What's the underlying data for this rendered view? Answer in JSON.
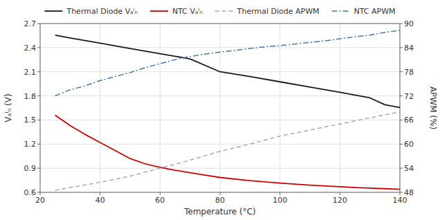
{
  "chart_data": {
    "type": "line",
    "xlabel": "Temperature (°C)",
    "ylabel": "Vₐᴵₙ (V)",
    "y2label": "APWM (%)",
    "xlim": [
      20,
      140
    ],
    "ylim": [
      0.6,
      2.7
    ],
    "y2lim": [
      48,
      90
    ],
    "xticks": [
      20,
      40,
      60,
      80,
      100,
      120,
      140
    ],
    "yticks": [
      0.6,
      0.9,
      1.2,
      1.5,
      1.8,
      2.1,
      2.4,
      2.7
    ],
    "y2ticks": [
      48,
      54,
      60,
      66,
      72,
      78,
      84,
      90
    ],
    "grid": true,
    "legend": "top",
    "series": [
      {
        "name": "Thermal Diode Vₐᴵₙ",
        "color": "#1a1a1a",
        "line_style": "solid",
        "axis": "y",
        "x": [
          25,
          30,
          40,
          50,
          60,
          70,
          80,
          90,
          100,
          110,
          120,
          125,
          130,
          135,
          140
        ],
        "values": [
          2.555,
          2.52,
          2.455,
          2.39,
          2.325,
          2.26,
          2.1,
          2.04,
          1.975,
          1.91,
          1.845,
          1.81,
          1.775,
          1.69,
          1.655
        ]
      },
      {
        "name": "NTC Vₐᴵₙ",
        "color": "#cc0000",
        "line_style": "solid",
        "axis": "y",
        "x": [
          25,
          30,
          35,
          40,
          45,
          50,
          55,
          60,
          65,
          70,
          75,
          80,
          90,
          100,
          110,
          120,
          125,
          130,
          135,
          140
        ],
        "values": [
          1.56,
          1.43,
          1.32,
          1.22,
          1.12,
          1.02,
          0.955,
          0.91,
          0.875,
          0.845,
          0.815,
          0.785,
          0.745,
          0.715,
          0.69,
          0.67,
          0.66,
          0.652,
          0.645,
          0.638
        ]
      },
      {
        "name": "Thermal Diode APWM",
        "color": "#aaaaaa",
        "line_style": "dashed",
        "axis": "y2",
        "x": [
          25,
          30,
          40,
          50,
          60,
          70,
          80,
          90,
          100,
          110,
          120,
          125,
          130,
          135,
          140
        ],
        "values": [
          48.5,
          49.2,
          50.5,
          52.0,
          54.0,
          56.0,
          58.2,
          60.0,
          62.0,
          63.5,
          65.0,
          65.8,
          66.5,
          67.3,
          68.0
        ]
      },
      {
        "name": "NTC APWM",
        "color": "#4477aa",
        "line_style": "dashdot",
        "axis": "y2",
        "x": [
          25,
          30,
          35,
          40,
          45,
          50,
          55,
          60,
          65,
          70,
          75,
          80,
          85,
          90,
          95,
          100,
          105,
          110,
          115,
          120,
          125,
          130,
          135,
          140
        ],
        "values": [
          72.0,
          73.5,
          74.5,
          75.8,
          76.8,
          77.8,
          79.0,
          80.0,
          81.0,
          81.8,
          82.4,
          82.9,
          83.3,
          83.8,
          84.2,
          84.5,
          84.9,
          85.3,
          85.7,
          86.2,
          86.7,
          87.1,
          87.8,
          88.3
        ]
      }
    ]
  }
}
